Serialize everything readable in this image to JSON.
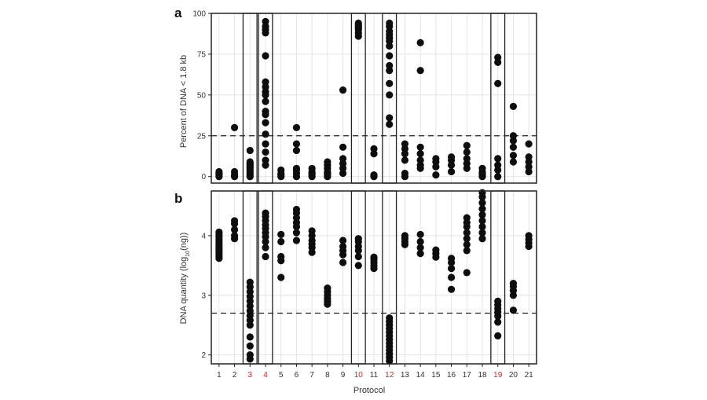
{
  "chart_data": [
    {
      "type": "scatter",
      "panel_letter": "a",
      "ylabel": "Percent of DNA < 1.8 kb",
      "ylim": [
        -4,
        100
      ],
      "yticks": [
        0,
        25,
        50,
        75,
        100
      ],
      "reference_line": 25,
      "grid": true,
      "points": [
        {
          "x": 1,
          "y": 0
        },
        {
          "x": 1,
          "y": 1
        },
        {
          "x": 1,
          "y": 2
        },
        {
          "x": 1,
          "y": 3
        },
        {
          "x": 2,
          "y": 0
        },
        {
          "x": 2,
          "y": 1
        },
        {
          "x": 2,
          "y": 3
        },
        {
          "x": 2,
          "y": 30
        },
        {
          "x": 3,
          "y": 0
        },
        {
          "x": 3,
          "y": 1
        },
        {
          "x": 3,
          "y": 2
        },
        {
          "x": 3,
          "y": 3
        },
        {
          "x": 3,
          "y": 4
        },
        {
          "x": 3,
          "y": 5
        },
        {
          "x": 3,
          "y": 6
        },
        {
          "x": 3,
          "y": 7
        },
        {
          "x": 3,
          "y": 8
        },
        {
          "x": 3,
          "y": 9
        },
        {
          "x": 3,
          "y": 16
        },
        {
          "x": 4,
          "y": 7
        },
        {
          "x": 4,
          "y": 10
        },
        {
          "x": 4,
          "y": 15
        },
        {
          "x": 4,
          "y": 20
        },
        {
          "x": 4,
          "y": 26
        },
        {
          "x": 4,
          "y": 33
        },
        {
          "x": 4,
          "y": 38
        },
        {
          "x": 4,
          "y": 40
        },
        {
          "x": 4,
          "y": 46
        },
        {
          "x": 4,
          "y": 50
        },
        {
          "x": 4,
          "y": 52
        },
        {
          "x": 4,
          "y": 55
        },
        {
          "x": 4,
          "y": 58
        },
        {
          "x": 4,
          "y": 74
        },
        {
          "x": 4,
          "y": 88
        },
        {
          "x": 4,
          "y": 90
        },
        {
          "x": 4,
          "y": 92
        },
        {
          "x": 4,
          "y": 95
        },
        {
          "x": 5,
          "y": 0
        },
        {
          "x": 5,
          "y": 1
        },
        {
          "x": 5,
          "y": 2
        },
        {
          "x": 5,
          "y": 4
        },
        {
          "x": 6,
          "y": 0
        },
        {
          "x": 6,
          "y": 2
        },
        {
          "x": 6,
          "y": 4
        },
        {
          "x": 6,
          "y": 5
        },
        {
          "x": 6,
          "y": 16
        },
        {
          "x": 6,
          "y": 20
        },
        {
          "x": 6,
          "y": 30
        },
        {
          "x": 7,
          "y": 0
        },
        {
          "x": 7,
          "y": 1
        },
        {
          "x": 7,
          "y": 2
        },
        {
          "x": 7,
          "y": 3
        },
        {
          "x": 7,
          "y": 5
        },
        {
          "x": 8,
          "y": 0
        },
        {
          "x": 8,
          "y": 1
        },
        {
          "x": 8,
          "y": 2
        },
        {
          "x": 8,
          "y": 3
        },
        {
          "x": 8,
          "y": 5
        },
        {
          "x": 8,
          "y": 7
        },
        {
          "x": 8,
          "y": 9
        },
        {
          "x": 9,
          "y": 2
        },
        {
          "x": 9,
          "y": 5
        },
        {
          "x": 9,
          "y": 8
        },
        {
          "x": 9,
          "y": 11
        },
        {
          "x": 9,
          "y": 18
        },
        {
          "x": 9,
          "y": 53
        },
        {
          "x": 10,
          "y": 86
        },
        {
          "x": 10,
          "y": 88
        },
        {
          "x": 10,
          "y": 90
        },
        {
          "x": 10,
          "y": 91
        },
        {
          "x": 10,
          "y": 92
        },
        {
          "x": 10,
          "y": 93
        },
        {
          "x": 10,
          "y": 94
        },
        {
          "x": 11,
          "y": 0
        },
        {
          "x": 11,
          "y": 1
        },
        {
          "x": 11,
          "y": 14
        },
        {
          "x": 11,
          "y": 17
        },
        {
          "x": 12,
          "y": 32
        },
        {
          "x": 12,
          "y": 36
        },
        {
          "x": 12,
          "y": 50
        },
        {
          "x": 12,
          "y": 57
        },
        {
          "x": 12,
          "y": 65
        },
        {
          "x": 12,
          "y": 68
        },
        {
          "x": 12,
          "y": 74
        },
        {
          "x": 12,
          "y": 80
        },
        {
          "x": 12,
          "y": 83
        },
        {
          "x": 12,
          "y": 85
        },
        {
          "x": 12,
          "y": 87
        },
        {
          "x": 12,
          "y": 89
        },
        {
          "x": 12,
          "y": 92
        },
        {
          "x": 12,
          "y": 94
        },
        {
          "x": 13,
          "y": 0
        },
        {
          "x": 13,
          "y": 2
        },
        {
          "x": 13,
          "y": 10
        },
        {
          "x": 13,
          "y": 14
        },
        {
          "x": 13,
          "y": 17
        },
        {
          "x": 13,
          "y": 20
        },
        {
          "x": 14,
          "y": 5
        },
        {
          "x": 14,
          "y": 7
        },
        {
          "x": 14,
          "y": 10
        },
        {
          "x": 14,
          "y": 14
        },
        {
          "x": 14,
          "y": 18
        },
        {
          "x": 14,
          "y": 65
        },
        {
          "x": 14,
          "y": 82
        },
        {
          "x": 15,
          "y": 1
        },
        {
          "x": 15,
          "y": 6
        },
        {
          "x": 15,
          "y": 9
        },
        {
          "x": 15,
          "y": 11
        },
        {
          "x": 16,
          "y": 3
        },
        {
          "x": 16,
          "y": 7
        },
        {
          "x": 16,
          "y": 10
        },
        {
          "x": 16,
          "y": 12
        },
        {
          "x": 17,
          "y": 5
        },
        {
          "x": 17,
          "y": 8
        },
        {
          "x": 17,
          "y": 11
        },
        {
          "x": 17,
          "y": 15
        },
        {
          "x": 17,
          "y": 19
        },
        {
          "x": 18,
          "y": 0
        },
        {
          "x": 18,
          "y": 1
        },
        {
          "x": 18,
          "y": 2
        },
        {
          "x": 18,
          "y": 3
        },
        {
          "x": 18,
          "y": 5
        },
        {
          "x": 19,
          "y": 0
        },
        {
          "x": 19,
          "y": 4
        },
        {
          "x": 19,
          "y": 7
        },
        {
          "x": 19,
          "y": 11
        },
        {
          "x": 19,
          "y": 57
        },
        {
          "x": 19,
          "y": 70
        },
        {
          "x": 19,
          "y": 73
        },
        {
          "x": 20,
          "y": 9
        },
        {
          "x": 20,
          "y": 13
        },
        {
          "x": 20,
          "y": 18
        },
        {
          "x": 20,
          "y": 22
        },
        {
          "x": 20,
          "y": 25
        },
        {
          "x": 20,
          "y": 43
        },
        {
          "x": 21,
          "y": 3
        },
        {
          "x": 21,
          "y": 6
        },
        {
          "x": 21,
          "y": 9
        },
        {
          "x": 21,
          "y": 12
        },
        {
          "x": 21,
          "y": 20
        }
      ]
    },
    {
      "type": "scatter",
      "panel_letter": "b",
      "ylabel_main": "DNA quantity (log",
      "ylabel_sub": "10",
      "ylabel_end": "(ng))",
      "xlabel": "Protocol",
      "ylim": [
        1.85,
        4.75
      ],
      "yticks": [
        2,
        3,
        4
      ],
      "reference_line": 2.7,
      "grid": true,
      "x_categories": [
        "1",
        "2",
        "3",
        "4",
        "5",
        "6",
        "7",
        "8",
        "9",
        "10",
        "11",
        "12",
        "13",
        "14",
        "15",
        "16",
        "17",
        "18",
        "19",
        "20",
        "21"
      ],
      "highlighted_protocols": [
        3,
        4,
        10,
        12,
        19
      ],
      "highlight_color": "#d42020",
      "points": [
        {
          "x": 1,
          "y": 3.62
        },
        {
          "x": 1,
          "y": 3.66
        },
        {
          "x": 1,
          "y": 3.7
        },
        {
          "x": 1,
          "y": 3.74
        },
        {
          "x": 1,
          "y": 3.78
        },
        {
          "x": 1,
          "y": 3.82
        },
        {
          "x": 1,
          "y": 3.86
        },
        {
          "x": 1,
          "y": 3.9
        },
        {
          "x": 1,
          "y": 3.94
        },
        {
          "x": 1,
          "y": 3.98
        },
        {
          "x": 1,
          "y": 4.02
        },
        {
          "x": 1,
          "y": 4.06
        },
        {
          "x": 2,
          "y": 3.95
        },
        {
          "x": 2,
          "y": 4.0
        },
        {
          "x": 2,
          "y": 4.1
        },
        {
          "x": 2,
          "y": 4.2
        },
        {
          "x": 2,
          "y": 4.25
        },
        {
          "x": 3,
          "y": 1.93
        },
        {
          "x": 3,
          "y": 2.0
        },
        {
          "x": 3,
          "y": 2.15
        },
        {
          "x": 3,
          "y": 2.3
        },
        {
          "x": 3,
          "y": 2.5
        },
        {
          "x": 3,
          "y": 2.58
        },
        {
          "x": 3,
          "y": 2.66
        },
        {
          "x": 3,
          "y": 2.74
        },
        {
          "x": 3,
          "y": 2.82
        },
        {
          "x": 3,
          "y": 2.9
        },
        {
          "x": 3,
          "y": 2.98
        },
        {
          "x": 3,
          "y": 3.06
        },
        {
          "x": 3,
          "y": 3.14
        },
        {
          "x": 3,
          "y": 3.22
        },
        {
          "x": 4,
          "y": 3.65
        },
        {
          "x": 4,
          "y": 3.8
        },
        {
          "x": 4,
          "y": 3.9
        },
        {
          "x": 4,
          "y": 3.98
        },
        {
          "x": 4,
          "y": 4.05
        },
        {
          "x": 4,
          "y": 4.12
        },
        {
          "x": 4,
          "y": 4.18
        },
        {
          "x": 4,
          "y": 4.25
        },
        {
          "x": 4,
          "y": 4.32
        },
        {
          "x": 4,
          "y": 4.38
        },
        {
          "x": 5,
          "y": 3.3
        },
        {
          "x": 5,
          "y": 3.58
        },
        {
          "x": 5,
          "y": 3.65
        },
        {
          "x": 5,
          "y": 3.9
        },
        {
          "x": 5,
          "y": 4.02
        },
        {
          "x": 6,
          "y": 3.92
        },
        {
          "x": 6,
          "y": 4.05
        },
        {
          "x": 6,
          "y": 4.15
        },
        {
          "x": 6,
          "y": 4.22
        },
        {
          "x": 6,
          "y": 4.3
        },
        {
          "x": 6,
          "y": 4.38
        },
        {
          "x": 6,
          "y": 4.44
        },
        {
          "x": 7,
          "y": 3.72
        },
        {
          "x": 7,
          "y": 3.8
        },
        {
          "x": 7,
          "y": 3.86
        },
        {
          "x": 7,
          "y": 3.92
        },
        {
          "x": 7,
          "y": 4.0
        },
        {
          "x": 7,
          "y": 4.08
        },
        {
          "x": 8,
          "y": 2.85
        },
        {
          "x": 8,
          "y": 2.9
        },
        {
          "x": 8,
          "y": 2.95
        },
        {
          "x": 8,
          "y": 3.0
        },
        {
          "x": 8,
          "y": 3.06
        },
        {
          "x": 8,
          "y": 3.12
        },
        {
          "x": 9,
          "y": 3.55
        },
        {
          "x": 9,
          "y": 3.68
        },
        {
          "x": 9,
          "y": 3.75
        },
        {
          "x": 9,
          "y": 3.82
        },
        {
          "x": 9,
          "y": 3.92
        },
        {
          "x": 10,
          "y": 3.5
        },
        {
          "x": 10,
          "y": 3.65
        },
        {
          "x": 10,
          "y": 3.75
        },
        {
          "x": 10,
          "y": 3.82
        },
        {
          "x": 10,
          "y": 3.9
        },
        {
          "x": 10,
          "y": 3.95
        },
        {
          "x": 11,
          "y": 3.45
        },
        {
          "x": 11,
          "y": 3.5
        },
        {
          "x": 11,
          "y": 3.55
        },
        {
          "x": 11,
          "y": 3.6
        },
        {
          "x": 11,
          "y": 3.64
        },
        {
          "x": 12,
          "y": 1.9
        },
        {
          "x": 12,
          "y": 1.96
        },
        {
          "x": 12,
          "y": 2.02
        },
        {
          "x": 12,
          "y": 2.08
        },
        {
          "x": 12,
          "y": 2.14
        },
        {
          "x": 12,
          "y": 2.2
        },
        {
          "x": 12,
          "y": 2.26
        },
        {
          "x": 12,
          "y": 2.32
        },
        {
          "x": 12,
          "y": 2.38
        },
        {
          "x": 12,
          "y": 2.44
        },
        {
          "x": 12,
          "y": 2.5
        },
        {
          "x": 12,
          "y": 2.56
        },
        {
          "x": 12,
          "y": 2.62
        },
        {
          "x": 13,
          "y": 3.85
        },
        {
          "x": 13,
          "y": 3.9
        },
        {
          "x": 13,
          "y": 3.95
        },
        {
          "x": 13,
          "y": 4.0
        },
        {
          "x": 14,
          "y": 3.7
        },
        {
          "x": 14,
          "y": 3.8
        },
        {
          "x": 14,
          "y": 3.9
        },
        {
          "x": 14,
          "y": 4.02
        },
        {
          "x": 15,
          "y": 3.64
        },
        {
          "x": 15,
          "y": 3.7
        },
        {
          "x": 15,
          "y": 3.76
        },
        {
          "x": 16,
          "y": 3.1
        },
        {
          "x": 16,
          "y": 3.3
        },
        {
          "x": 16,
          "y": 3.45
        },
        {
          "x": 16,
          "y": 3.55
        },
        {
          "x": 16,
          "y": 3.62
        },
        {
          "x": 17,
          "y": 3.38
        },
        {
          "x": 17,
          "y": 3.75
        },
        {
          "x": 17,
          "y": 3.85
        },
        {
          "x": 17,
          "y": 3.95
        },
        {
          "x": 17,
          "y": 4.05
        },
        {
          "x": 17,
          "y": 4.15
        },
        {
          "x": 17,
          "y": 4.22
        },
        {
          "x": 17,
          "y": 4.3
        },
        {
          "x": 18,
          "y": 3.95
        },
        {
          "x": 18,
          "y": 4.05
        },
        {
          "x": 18,
          "y": 4.15
        },
        {
          "x": 18,
          "y": 4.25
        },
        {
          "x": 18,
          "y": 4.35
        },
        {
          "x": 18,
          "y": 4.45
        },
        {
          "x": 18,
          "y": 4.55
        },
        {
          "x": 18,
          "y": 4.65
        },
        {
          "x": 18,
          "y": 4.72
        },
        {
          "x": 19,
          "y": 2.32
        },
        {
          "x": 19,
          "y": 2.55
        },
        {
          "x": 19,
          "y": 2.65
        },
        {
          "x": 19,
          "y": 2.72
        },
        {
          "x": 19,
          "y": 2.78
        },
        {
          "x": 19,
          "y": 2.84
        },
        {
          "x": 19,
          "y": 2.9
        },
        {
          "x": 20,
          "y": 2.75
        },
        {
          "x": 20,
          "y": 3.0
        },
        {
          "x": 20,
          "y": 3.08
        },
        {
          "x": 20,
          "y": 3.15
        },
        {
          "x": 20,
          "y": 3.2
        },
        {
          "x": 21,
          "y": 3.82
        },
        {
          "x": 21,
          "y": 3.88
        },
        {
          "x": 21,
          "y": 3.94
        },
        {
          "x": 21,
          "y": 4.0
        }
      ]
    }
  ]
}
